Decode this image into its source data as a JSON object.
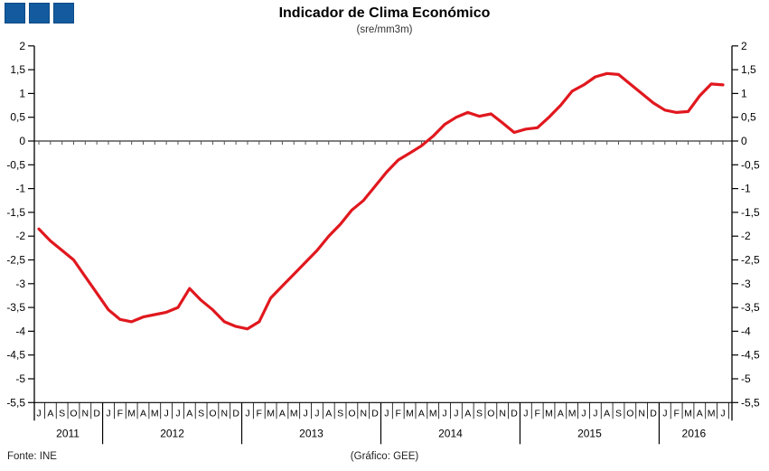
{
  "header": {
    "title": "Indicador de Clima Económico",
    "subtitle": "(sre/mm3m)"
  },
  "footer": {
    "source": "Fonte: INE",
    "credit": "(Gráfico: GEE)"
  },
  "colors": {
    "line_red": "#e0181e",
    "logo_blue": "#135b9e",
    "axis_black": "#000000",
    "tick_gray": "#555555"
  },
  "chart_data": {
    "type": "line",
    "title": "Indicador de Clima Económico",
    "subtitle": "(sre/mm3m)",
    "ylim": [
      -5.5,
      2
    ],
    "ytick_step": 0.5,
    "ytick_labels": [
      "2",
      "1,5",
      "1",
      "0,5",
      "0",
      "-0,5",
      "-1",
      "-1,5",
      "-2",
      "-2,5",
      "-3",
      "-3,5",
      "-4",
      "-4,5",
      "-5",
      "-5,5"
    ],
    "dual_y_axes": true,
    "grid": false,
    "zero_line": true,
    "x_months": [
      "J",
      "A",
      "S",
      "O",
      "N",
      "D",
      "J",
      "F",
      "M",
      "A",
      "M",
      "J",
      "J",
      "A",
      "S",
      "O",
      "N",
      "D",
      "J",
      "F",
      "M",
      "A",
      "M",
      "J",
      "J",
      "A",
      "S",
      "O",
      "N",
      "D",
      "J",
      "F",
      "M",
      "A",
      "M",
      "J",
      "J",
      "A",
      "S",
      "O",
      "N",
      "D",
      "J",
      "F",
      "M",
      "A",
      "M",
      "J",
      "J",
      "A",
      "S",
      "O",
      "N",
      "D",
      "J",
      "F",
      "M",
      "A",
      "M",
      "J"
    ],
    "years": [
      {
        "label": "2011",
        "months": 6
      },
      {
        "label": "2012",
        "months": 12
      },
      {
        "label": "2013",
        "months": 12
      },
      {
        "label": "2014",
        "months": 12
      },
      {
        "label": "2015",
        "months": 12
      },
      {
        "label": "2016",
        "months": 6
      }
    ],
    "series": [
      {
        "name": "Indicador de Clima Económico",
        "color": "#e0181e",
        "values": [
          -1.85,
          -2.1,
          -2.3,
          -2.5,
          -2.85,
          -3.2,
          -3.55,
          -3.75,
          -3.8,
          -3.7,
          -3.65,
          -3.6,
          -3.5,
          -3.1,
          -3.35,
          -3.55,
          -3.8,
          -3.9,
          -3.95,
          -3.8,
          -3.3,
          -3.05,
          -2.8,
          -2.55,
          -2.3,
          -2.0,
          -1.75,
          -1.45,
          -1.25,
          -0.95,
          -0.65,
          -0.4,
          -0.25,
          -0.1,
          0.1,
          0.35,
          0.5,
          0.6,
          0.52,
          0.57,
          0.38,
          0.18,
          0.25,
          0.28,
          0.5,
          0.75,
          1.05,
          1.18,
          1.35,
          1.42,
          1.4,
          1.2,
          1.0,
          0.8,
          0.65,
          0.6,
          0.62,
          0.95,
          1.2,
          1.18
        ]
      }
    ]
  }
}
